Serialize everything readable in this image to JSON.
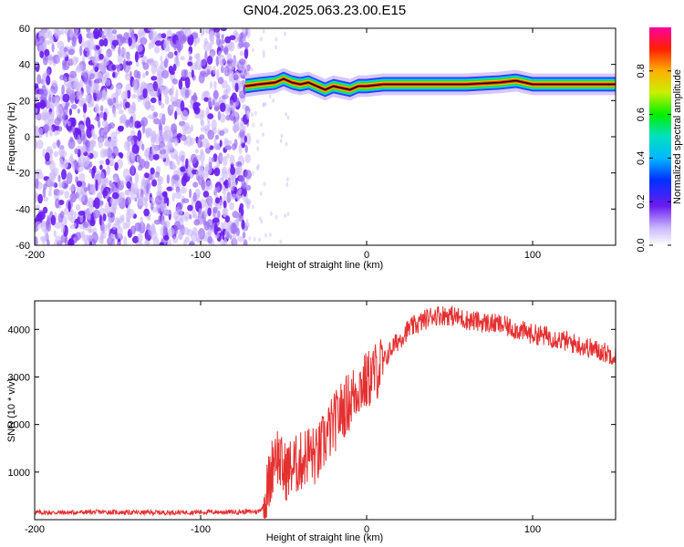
{
  "title": "GN04.2025.063.23.00.E15",
  "colors": {
    "signal": "#e53030",
    "axis": "#000000",
    "noise": "#7b2cf0"
  },
  "chart_data": [
    {
      "id": "spectrogram",
      "type": "heatmap",
      "title": "GN04.2025.063.23.00.E15",
      "xlabel": "Height of straight line (km)",
      "ylabel": "Frequency (Hz)",
      "xlim": [
        -200,
        150
      ],
      "ylim": [
        -60,
        60
      ],
      "xticks": [
        -200,
        -100,
        0,
        100
      ],
      "yticks": [
        -60,
        -40,
        -20,
        0,
        20,
        40,
        60
      ],
      "noise_region_x": [
        -200,
        -72
      ],
      "ridge": {
        "x": [
          -73,
          -65,
          -55,
          -50,
          -45,
          -40,
          -35,
          -30,
          -25,
          -20,
          -15,
          -10,
          -5,
          0,
          10,
          20,
          40,
          60,
          80,
          90,
          100,
          120,
          150
        ],
        "y": [
          28,
          29,
          30,
          32,
          30,
          29,
          30,
          28,
          26,
          28,
          27,
          26,
          28,
          28,
          29,
          29,
          29,
          29,
          30,
          31,
          29,
          29,
          29
        ]
      },
      "colorbar": {
        "label": "Normalized spectral amplitude",
        "range": [
          0,
          1
        ],
        "ticks": [
          0.0,
          0.2,
          0.4,
          0.6,
          0.8
        ],
        "tick_labels": [
          "0.0",
          "0.2",
          "0.4",
          "0.6",
          "0.8"
        ]
      }
    },
    {
      "id": "snr",
      "type": "line",
      "xlabel": "Height of straight line (km)",
      "ylabel": "SNR (10 * v/v)",
      "xlim": [
        -200,
        150
      ],
      "ylim": [
        0,
        4600
      ],
      "xticks": [
        -200,
        -100,
        0,
        100
      ],
      "yticks": [
        1000,
        2000,
        3000,
        4000
      ],
      "series": [
        {
          "x": [
            -200,
            -180,
            -160,
            -140,
            -120,
            -100,
            -80,
            -65,
            -62,
            -58,
            -55,
            -50,
            -45,
            -40,
            -35,
            -30,
            -25,
            -20,
            -15,
            -10,
            -5,
            0,
            5,
            10,
            15,
            20,
            25,
            30,
            40,
            50,
            60,
            70,
            80,
            90,
            100,
            110,
            120,
            130,
            140,
            150
          ],
          "values": [
            150,
            150,
            160,
            150,
            150,
            160,
            160,
            170,
            300,
            900,
            1500,
            1000,
            1100,
            1200,
            1400,
            1300,
            1700,
            2000,
            2300,
            2500,
            2800,
            2900,
            3100,
            3300,
            3600,
            3800,
            4000,
            4100,
            4300,
            4300,
            4200,
            4150,
            4100,
            4000,
            3900,
            3850,
            3750,
            3650,
            3550,
            3450
          ]
        }
      ]
    }
  ]
}
